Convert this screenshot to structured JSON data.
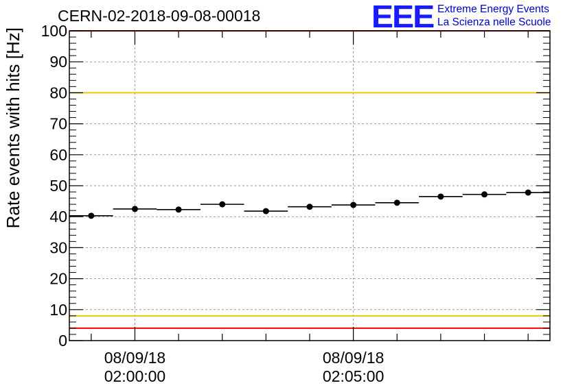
{
  "title": "CERN-02-2018-09-08-00018",
  "logo": {
    "mark": "EEE",
    "line1": "Extreme Energy Events",
    "line2": "La Scienza nelle Scuole"
  },
  "chart_data": {
    "type": "scatter",
    "title": "CERN-02-2018-09-08-00018",
    "ylabel": "Rate events with hits [Hz]",
    "xlabel": "",
    "ylim": [
      0,
      100
    ],
    "yticks": [
      0,
      10,
      20,
      30,
      40,
      50,
      60,
      70,
      80,
      90,
      100
    ],
    "xlim": [
      "2018-09-08 01:58:30",
      "2018-09-08 02:09:30"
    ],
    "xticks": [
      {
        "time": "2018-09-08 02:00:00",
        "line1": "08/09/18",
        "line2": "02:00:00"
      },
      {
        "time": "2018-09-08 02:05:00",
        "line1": "08/09/18",
        "line2": "02:05:00"
      }
    ],
    "grid": true,
    "reference_lines": [
      {
        "y": 100,
        "color": "#ff0000"
      },
      {
        "y": 80,
        "color": "#f2c200"
      },
      {
        "y": 8,
        "color": "#f2c200"
      },
      {
        "y": 4,
        "color": "#ff0000"
      }
    ],
    "series": [
      {
        "marker": "circle",
        "color": "#000000",
        "points": [
          {
            "x_start": "2018-09-08 01:58:30",
            "x_end": "2018-09-08 01:59:30",
            "y": 40.3
          },
          {
            "x_start": "2018-09-08 01:59:30",
            "x_end": "2018-09-08 02:00:30",
            "y": 42.5
          },
          {
            "x_start": "2018-09-08 02:00:30",
            "x_end": "2018-09-08 02:01:30",
            "y": 42.3
          },
          {
            "x_start": "2018-09-08 02:01:30",
            "x_end": "2018-09-08 02:02:30",
            "y": 44.0
          },
          {
            "x_start": "2018-09-08 02:02:30",
            "x_end": "2018-09-08 02:03:30",
            "y": 41.8
          },
          {
            "x_start": "2018-09-08 02:03:30",
            "x_end": "2018-09-08 02:04:30",
            "y": 43.2
          },
          {
            "x_start": "2018-09-08 02:04:30",
            "x_end": "2018-09-08 02:05:30",
            "y": 43.8
          },
          {
            "x_start": "2018-09-08 02:05:30",
            "x_end": "2018-09-08 02:06:30",
            "y": 44.5
          },
          {
            "x_start": "2018-09-08 02:06:30",
            "x_end": "2018-09-08 02:07:30",
            "y": 46.5
          },
          {
            "x_start": "2018-09-08 02:07:30",
            "x_end": "2018-09-08 02:08:30",
            "y": 47.2
          },
          {
            "x_start": "2018-09-08 02:08:30",
            "x_end": "2018-09-08 02:09:30",
            "y": 47.8
          }
        ]
      }
    ]
  }
}
